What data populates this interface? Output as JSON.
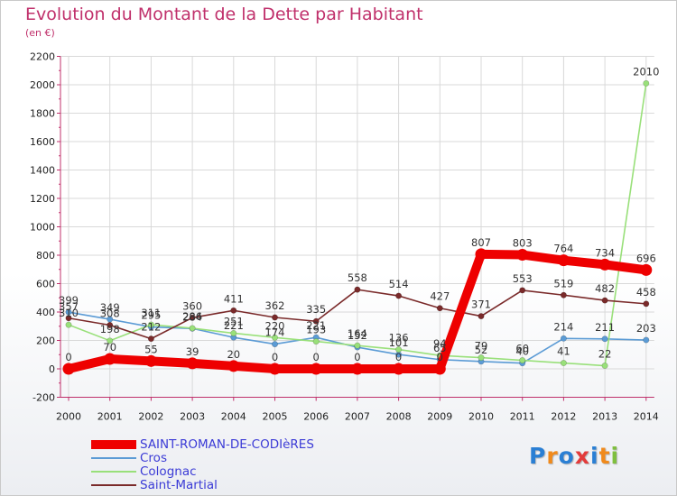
{
  "chart_data": {
    "type": "line",
    "title": "Evolution du Montant de la Dette par Habitant",
    "ylabel": "(en €)",
    "xlabel": "",
    "categories": [
      "2000",
      "2001",
      "2002",
      "2003",
      "2004",
      "2005",
      "2006",
      "2007",
      "2008",
      "2009",
      "2010",
      "2011",
      "2012",
      "2013",
      "2014"
    ],
    "ylim": [
      -200,
      2200
    ],
    "yticks": [
      -200,
      0,
      200,
      400,
      600,
      800,
      1000,
      1200,
      1400,
      1600,
      1800,
      2000,
      2200
    ],
    "grid": true,
    "legend_position": "bottom-left",
    "series": [
      {
        "name": "SAINT-ROMAN-DE-CODIèRES",
        "color": "#ee0000",
        "emphasis": true,
        "values": [
          0,
          70,
          55,
          39,
          20,
          0,
          0,
          0,
          0,
          0,
          807,
          803,
          764,
          734,
          696
        ]
      },
      {
        "name": "Cros",
        "color": "#5b9bd5",
        "values": [
          399,
          349,
          295,
          284,
          221,
          174,
          221,
          152,
          101,
          65,
          52,
          40,
          214,
          211,
          203
        ]
      },
      {
        "name": "Colognac",
        "color": "#99e07a",
        "values": [
          310,
          198,
          311,
          286,
          251,
          220,
          193,
          164,
          136,
          94,
          79,
          60,
          41,
          22,
          2010
        ]
      },
      {
        "name": "Saint-Martial",
        "color": "#7a2a2a",
        "values": [
          357,
          308,
          212,
          360,
          411,
          362,
          335,
          558,
          514,
          427,
          371,
          553,
          519,
          482,
          458
        ]
      }
    ]
  },
  "logo": {
    "text": "Proxiti",
    "letters": [
      "P",
      "r",
      "o",
      "x",
      "i",
      "t",
      "i"
    ],
    "colors": [
      "#2a7fd4",
      "#f08a1c",
      "#2a7fd4",
      "#e33b3b",
      "#2a7fd4",
      "#f08a1c",
      "#7fbf3f"
    ]
  }
}
